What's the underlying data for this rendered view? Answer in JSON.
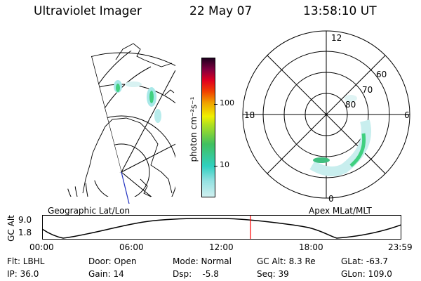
{
  "header": {
    "instrument": "Ultraviolet Imager",
    "date": "22 May 07",
    "time": "13:58:10 UT"
  },
  "colorbar": {
    "unit_label": "photon cm⁻²s⁻¹",
    "tick_100": "100",
    "tick_10": "10"
  },
  "polar_plot": {
    "mlt_labels": {
      "top": "12",
      "left": "18",
      "right": "6",
      "bottom": "0"
    },
    "lat_labels": {
      "l60": "60",
      "l70": "70",
      "l80": "80"
    }
  },
  "panels": {
    "left_title": "Geographic Lat/Lon",
    "right_title": "Apex MLat/MLT"
  },
  "alt_plot": {
    "ylabel": "GC Alt",
    "y_top": "9.0",
    "y_bottom": "1.8",
    "x_ticks": [
      "00:00",
      "06:00",
      "12:00",
      "18:00",
      "23:59"
    ]
  },
  "status": {
    "flt": "Flt: LBHL",
    "ip": "IP: 36.0",
    "door": "Door: Open",
    "gain": "Gain: 14",
    "mode": "Mode: Normal",
    "dsp": "Dsp:    -5.8",
    "gc_alt": "GC Alt: 8.3 Re",
    "seq": "Seq: 39",
    "glat": "GLat: -63.7",
    "glon": "GLon: 109.0"
  },
  "colors": {
    "marker_line": "#ff0000",
    "aurora_green": "#40d080",
    "aurora_light": "#a8e8e8"
  }
}
